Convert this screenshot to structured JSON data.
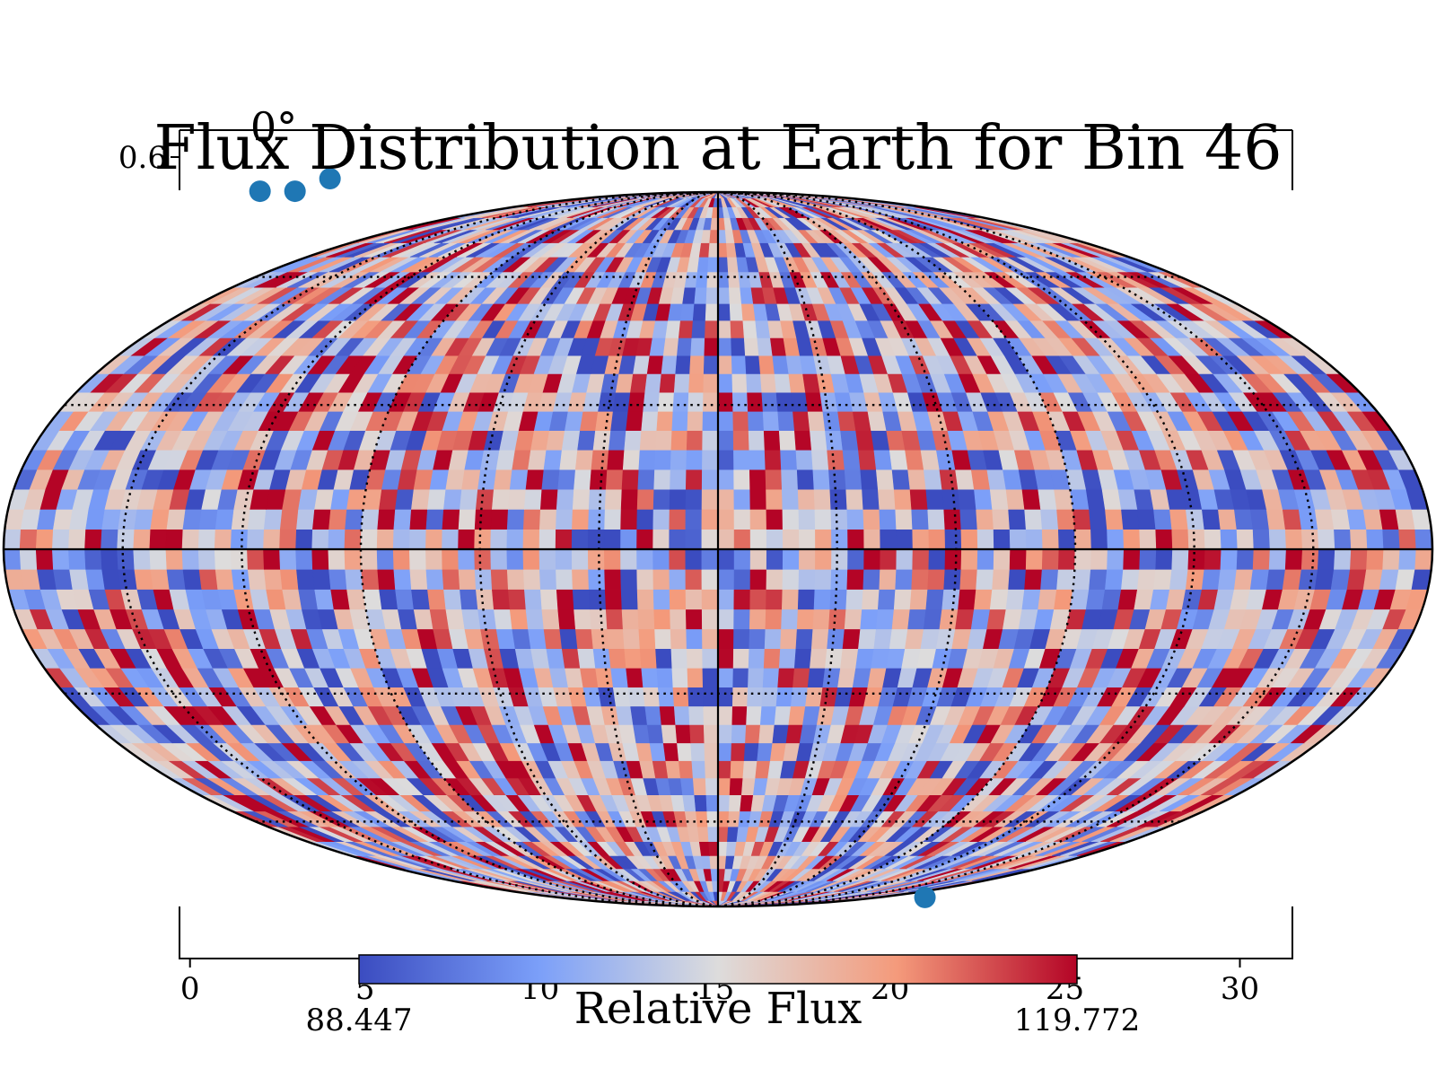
{
  "chart_data": {
    "type": "heatmap",
    "title": "Flux Distribution at Earth for Bin 46",
    "projection": "mollweide",
    "graticule": "dotted",
    "colormap": "coolwarm",
    "colorbar": {
      "label": "Relative Flux",
      "min_label": "88.447",
      "max_label": "119.772",
      "range": [
        88.447,
        119.772
      ],
      "placement": "bottom"
    },
    "meridian_label": "0°",
    "underlying_axes": {
      "xlim": [
        -0.3,
        31.5
      ],
      "ylim": [
        0,
        0.6
      ],
      "x_ticks": [
        "0",
        "5",
        "10",
        "15",
        "20",
        "25",
        "30"
      ],
      "x_tick_values": [
        0,
        5,
        10,
        15,
        20,
        25,
        30
      ],
      "y_ticks": [
        "0.6"
      ],
      "y_tick_values": [
        0.6
      ]
    },
    "points": {
      "x": [
        2,
        3,
        4,
        21
      ],
      "y": [
        0.58,
        0.58,
        0.59,
        0.02
      ],
      "color": "#1f77b4"
    }
  }
}
